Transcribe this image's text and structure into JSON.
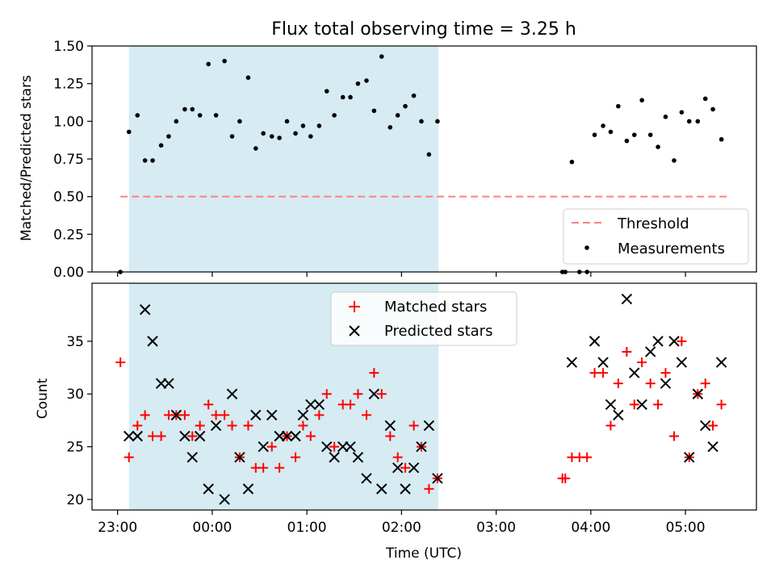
{
  "chart_data": [
    {
      "type": "scatter",
      "title": "Flux total observing time = 3.25 h",
      "xlabel": "",
      "ylabel": "Matched/Predicted stars",
      "x_unit": "hours since 23:00 UTC",
      "xlim": [
        -0.27,
        6.75
      ],
      "ylim": [
        0,
        1.5
      ],
      "yticks": [
        0.0,
        0.25,
        0.5,
        0.75,
        1.0,
        1.25,
        1.5
      ],
      "ytick_labels": [
        "0.00",
        "0.25",
        "0.50",
        "0.75",
        "1.00",
        "1.25",
        "1.50"
      ],
      "shaded_span": {
        "x": [
          0.12,
          3.39
        ],
        "color": "#add8e6"
      },
      "threshold": {
        "label": "Threshold",
        "y": 0.5,
        "x": [
          0.03,
          6.45
        ],
        "color": "#ff7f7f"
      },
      "legend": {
        "position": "lower-right",
        "entries": [
          "Threshold",
          "Measurements"
        ]
      },
      "series": [
        {
          "name": "Measurements",
          "color": "#000000",
          "points": [
            [
              0.03,
              0.0
            ],
            [
              0.12,
              0.93
            ],
            [
              0.21,
              1.04
            ],
            [
              0.29,
              0.74
            ],
            [
              0.37,
              0.74
            ],
            [
              0.46,
              0.84
            ],
            [
              0.54,
              0.9
            ],
            [
              0.62,
              1.0
            ],
            [
              0.71,
              1.08
            ],
            [
              0.79,
              1.08
            ],
            [
              0.87,
              1.04
            ],
            [
              0.96,
              1.38
            ],
            [
              1.04,
              1.04
            ],
            [
              1.13,
              1.4
            ],
            [
              1.21,
              0.9
            ],
            [
              1.29,
              1.0
            ],
            [
              1.38,
              1.29
            ],
            [
              1.46,
              0.82
            ],
            [
              1.54,
              0.92
            ],
            [
              1.63,
              0.9
            ],
            [
              1.71,
              0.89
            ],
            [
              1.79,
              1.0
            ],
            [
              1.88,
              0.92
            ],
            [
              1.96,
              0.97
            ],
            [
              2.04,
              0.9
            ],
            [
              2.13,
              0.97
            ],
            [
              2.21,
              1.2
            ],
            [
              2.29,
              1.04
            ],
            [
              2.38,
              1.16
            ],
            [
              2.46,
              1.16
            ],
            [
              2.54,
              1.25
            ],
            [
              2.63,
              1.27
            ],
            [
              2.71,
              1.07
            ],
            [
              2.79,
              1.43
            ],
            [
              2.88,
              0.96
            ],
            [
              2.96,
              1.04
            ],
            [
              3.04,
              1.1
            ],
            [
              3.13,
              1.17
            ],
            [
              3.21,
              1.0
            ],
            [
              3.29,
              0.78
            ],
            [
              3.38,
              1.0
            ],
            [
              4.7,
              0.0
            ],
            [
              4.73,
              0.0
            ],
            [
              4.8,
              0.73
            ],
            [
              4.88,
              0.0
            ],
            [
              4.96,
              0.0
            ],
            [
              5.04,
              0.91
            ],
            [
              5.13,
              0.97
            ],
            [
              5.21,
              0.93
            ],
            [
              5.29,
              1.1
            ],
            [
              5.38,
              0.87
            ],
            [
              5.46,
              0.91
            ],
            [
              5.54,
              1.14
            ],
            [
              5.63,
              0.91
            ],
            [
              5.71,
              0.83
            ],
            [
              5.79,
              1.03
            ],
            [
              5.88,
              0.74
            ],
            [
              5.96,
              1.06
            ],
            [
              6.04,
              1.0
            ],
            [
              6.13,
              1.0
            ],
            [
              6.21,
              1.15
            ],
            [
              6.29,
              1.08
            ],
            [
              6.38,
              0.88
            ]
          ]
        }
      ]
    },
    {
      "type": "scatter",
      "title": "",
      "xlabel": "Time (UTC)",
      "ylabel": "Count",
      "x_unit": "hours since 23:00 UTC",
      "xlim": [
        -0.27,
        6.75
      ],
      "ylim": [
        19,
        40.5
      ],
      "yticks": [
        20,
        25,
        30,
        35
      ],
      "ytick_labels": [
        "20",
        "25",
        "30",
        "35"
      ],
      "xticks": [
        0,
        1,
        2,
        3,
        4,
        5,
        6
      ],
      "xtick_labels": [
        "23:00",
        "00:00",
        "01:00",
        "02:00",
        "03:00",
        "04:00",
        "05:00"
      ],
      "shaded_span": {
        "x": [
          0.12,
          3.39
        ],
        "color": "#add8e6"
      },
      "legend": {
        "position": "top-center",
        "entries": [
          "Matched stars",
          "Predicted stars"
        ]
      },
      "series": [
        {
          "name": "Matched stars",
          "marker": "+",
          "color": "#ff0000",
          "points": [
            [
              0.03,
              33
            ],
            [
              0.12,
              24
            ],
            [
              0.21,
              27
            ],
            [
              0.29,
              28
            ],
            [
              0.37,
              26
            ],
            [
              0.46,
              26
            ],
            [
              0.54,
              28
            ],
            [
              0.62,
              28
            ],
            [
              0.71,
              28
            ],
            [
              0.79,
              26
            ],
            [
              0.87,
              27
            ],
            [
              0.96,
              29
            ],
            [
              1.04,
              28
            ],
            [
              1.13,
              28
            ],
            [
              1.21,
              27
            ],
            [
              1.29,
              24
            ],
            [
              1.38,
              27
            ],
            [
              1.46,
              23
            ],
            [
              1.54,
              23
            ],
            [
              1.63,
              25
            ],
            [
              1.71,
              23
            ],
            [
              1.79,
              26
            ],
            [
              1.88,
              24
            ],
            [
              1.96,
              27
            ],
            [
              2.04,
              26
            ],
            [
              2.13,
              28
            ],
            [
              2.21,
              30
            ],
            [
              2.29,
              25
            ],
            [
              2.38,
              29
            ],
            [
              2.46,
              29
            ],
            [
              2.54,
              30
            ],
            [
              2.63,
              28
            ],
            [
              2.71,
              32
            ],
            [
              2.79,
              30
            ],
            [
              2.88,
              26
            ],
            [
              2.96,
              24
            ],
            [
              3.04,
              23
            ],
            [
              3.13,
              27
            ],
            [
              3.21,
              25
            ],
            [
              3.29,
              21
            ],
            [
              3.38,
              22
            ],
            [
              4.7,
              22
            ],
            [
              4.73,
              22
            ],
            [
              4.8,
              24
            ],
            [
              4.88,
              24
            ],
            [
              4.96,
              24
            ],
            [
              5.04,
              32
            ],
            [
              5.13,
              32
            ],
            [
              5.21,
              27
            ],
            [
              5.29,
              31
            ],
            [
              5.38,
              34
            ],
            [
              5.46,
              29
            ],
            [
              5.54,
              33
            ],
            [
              5.63,
              31
            ],
            [
              5.71,
              29
            ],
            [
              5.79,
              32
            ],
            [
              5.88,
              26
            ],
            [
              5.96,
              35
            ],
            [
              6.04,
              24
            ],
            [
              6.13,
              30
            ],
            [
              6.21,
              31
            ],
            [
              6.29,
              27
            ],
            [
              6.38,
              29
            ]
          ]
        },
        {
          "name": "Predicted stars",
          "marker": "x",
          "color": "#000000",
          "points": [
            [
              0.12,
              26
            ],
            [
              0.21,
              26
            ],
            [
              0.29,
              38
            ],
            [
              0.37,
              35
            ],
            [
              0.46,
              31
            ],
            [
              0.54,
              31
            ],
            [
              0.62,
              28
            ],
            [
              0.71,
              26
            ],
            [
              0.79,
              24
            ],
            [
              0.87,
              26
            ],
            [
              0.96,
              21
            ],
            [
              1.04,
              27
            ],
            [
              1.13,
              20
            ],
            [
              1.21,
              30
            ],
            [
              1.29,
              24
            ],
            [
              1.38,
              21
            ],
            [
              1.46,
              28
            ],
            [
              1.54,
              25
            ],
            [
              1.63,
              28
            ],
            [
              1.71,
              26
            ],
            [
              1.79,
              26
            ],
            [
              1.88,
              26
            ],
            [
              1.96,
              28
            ],
            [
              2.04,
              29
            ],
            [
              2.13,
              29
            ],
            [
              2.21,
              25
            ],
            [
              2.29,
              24
            ],
            [
              2.38,
              25
            ],
            [
              2.46,
              25
            ],
            [
              2.54,
              24
            ],
            [
              2.63,
              22
            ],
            [
              2.71,
              30
            ],
            [
              2.79,
              21
            ],
            [
              2.88,
              27
            ],
            [
              2.96,
              23
            ],
            [
              3.04,
              21
            ],
            [
              3.13,
              23
            ],
            [
              3.21,
              25
            ],
            [
              3.29,
              27
            ],
            [
              3.38,
              22
            ],
            [
              4.8,
              33
            ],
            [
              5.04,
              35
            ],
            [
              5.13,
              33
            ],
            [
              5.21,
              29
            ],
            [
              5.29,
              28
            ],
            [
              5.38,
              39
            ],
            [
              5.46,
              32
            ],
            [
              5.54,
              29
            ],
            [
              5.63,
              34
            ],
            [
              5.71,
              35
            ],
            [
              5.79,
              31
            ],
            [
              5.88,
              35
            ],
            [
              5.96,
              33
            ],
            [
              6.04,
              24
            ],
            [
              6.13,
              30
            ],
            [
              6.21,
              27
            ],
            [
              6.29,
              25
            ],
            [
              6.38,
              33
            ]
          ]
        }
      ]
    }
  ]
}
